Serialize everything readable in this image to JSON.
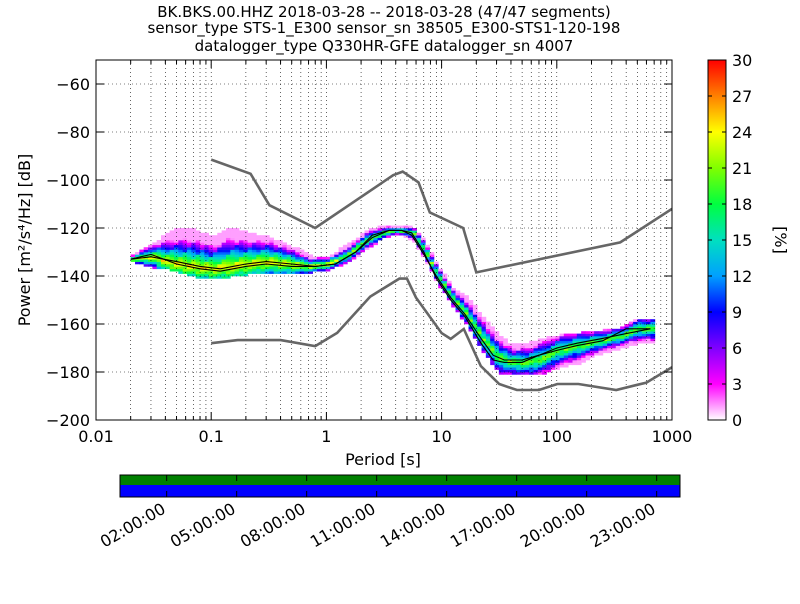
{
  "titles": {
    "line1": "BK.BKS.00.HHZ   2018-03-28 -- 2018-03-28  (47/47 segments)",
    "line2": "sensor_type STS-1_E300 sensor_sn 38505_E300-STS1-120-198",
    "line3": "datalogger_type Q330HR-GFE datalogger_sn 4007"
  },
  "chart_data": {
    "type": "heatmap",
    "xlabel": "Period [s]",
    "ylabel_text": "Power",
    "ylabel_units": "[m²/s⁴/Hz] [dB]",
    "x_scale": "log",
    "xlim": [
      0.01,
      1000
    ],
    "ylim": [
      -200,
      -50
    ],
    "x_ticks": [
      0.01,
      0.1,
      1,
      10,
      100,
      1000
    ],
    "x_tick_labels": [
      "0.01",
      "0.1",
      "1",
      "10",
      "100",
      "1000"
    ],
    "y_ticks": [
      -60,
      -80,
      -100,
      -120,
      -140,
      -160,
      -180,
      -200
    ],
    "y_tick_labels": [
      "−60",
      "−80",
      "−100",
      "−120",
      "−140",
      "−160",
      "−180",
      "−200"
    ],
    "grid": "dotted",
    "colorbar": {
      "label": "[%]",
      "range": [
        0,
        30
      ],
      "ticks": [
        0,
        3,
        6,
        9,
        12,
        15,
        18,
        21,
        24,
        27,
        30
      ],
      "colormap": [
        "#ffffff",
        "#ff00ff",
        "#8000ff",
        "#0000ff",
        "#00a0ff",
        "#00e0c0",
        "#00ff40",
        "#80ff00",
        "#ffff00",
        "#ff8000",
        "#ff0000"
      ]
    },
    "series": [
      {
        "name": "",
        "role": "NHNM",
        "color": "#666666",
        "x": [
          0.1,
          0.22,
          0.32,
          0.8,
          3.8,
          4.6,
          6.3,
          7.9,
          15.4,
          20,
          354.8,
          1000
        ],
        "y": [
          -91.5,
          -97.4,
          -110.5,
          -120,
          -98,
          -96.5,
          -101,
          -113.5,
          -120,
          -138.5,
          -126,
          -112
        ]
      },
      {
        "name": "",
        "role": "NLNM",
        "color": "#666666",
        "x": [
          0.1,
          0.17,
          0.4,
          0.8,
          1.24,
          2.4,
          4.3,
          5,
          6,
          10,
          12,
          15.6,
          21.9,
          31.6,
          45,
          70,
          101,
          154,
          328,
          600,
          1000
        ],
        "y": [
          -168,
          -166.7,
          -166.7,
          -169.2,
          -163.7,
          -148.6,
          -141.1,
          -141.1,
          -149,
          -163.8,
          -166.2,
          -162.1,
          -177.5,
          -185,
          -187.5,
          -187.5,
          -185,
          -185,
          -187.5,
          -184.4,
          -178
        ]
      },
      {
        "name": "",
        "role": "mean",
        "color": "#000000",
        "x": [
          0.02,
          0.03,
          0.05,
          0.08,
          0.12,
          0.2,
          0.3,
          0.5,
          0.8,
          1.2,
          1.8,
          2.5,
          3.5,
          4.5,
          5.5,
          7,
          9,
          12,
          16,
          22,
          28,
          35,
          50,
          70,
          100,
          150,
          250,
          400,
          650
        ],
        "y": [
          -133,
          -132,
          -134,
          -136,
          -137,
          -135,
          -134,
          -135,
          -136,
          -135,
          -130,
          -124,
          -121,
          -121,
          -123,
          -131,
          -140,
          -149,
          -156,
          -166,
          -173,
          -175,
          -175,
          -173,
          -170,
          -168,
          -166,
          -164,
          -162
        ]
      },
      {
        "name": "",
        "role": "mode",
        "color": "#000000",
        "x": [
          0.02,
          0.03,
          0.05,
          0.08,
          0.12,
          0.2,
          0.3,
          0.5,
          0.8,
          1.2,
          1.8,
          2.5,
          3.5,
          4.5,
          5.5,
          7,
          9,
          12,
          16,
          22,
          28,
          35,
          50,
          70,
          100,
          150,
          250,
          400,
          650
        ],
        "y": [
          -133,
          -131,
          -135,
          -137,
          -138,
          -136,
          -135,
          -136,
          -136,
          -135,
          -130,
          -123,
          -121,
          -121,
          -122,
          -130,
          -141,
          -150,
          -157,
          -168,
          -175,
          -176,
          -176,
          -173,
          -171,
          -169,
          -167,
          -162,
          -162
        ]
      }
    ],
    "heat_columns": [
      {
        "x": 0.02,
        "lo": -134,
        "hi": -131,
        "peak": -133
      },
      {
        "x": 0.03,
        "lo": -136,
        "hi": -127,
        "peak": -132
      },
      {
        "x": 0.04,
        "lo": -137,
        "hi": -122,
        "peak": -134
      },
      {
        "x": 0.05,
        "lo": -138,
        "hi": -120,
        "peak": -135
      },
      {
        "x": 0.07,
        "lo": -140,
        "hi": -121,
        "peak": -136
      },
      {
        "x": 0.1,
        "lo": -141,
        "hi": -124,
        "peak": -137
      },
      {
        "x": 0.14,
        "lo": -140,
        "hi": -120,
        "peak": -136
      },
      {
        "x": 0.2,
        "lo": -139,
        "hi": -122,
        "peak": -135
      },
      {
        "x": 0.3,
        "lo": -139,
        "hi": -124,
        "peak": -134
      },
      {
        "x": 0.45,
        "lo": -139,
        "hi": -127,
        "peak": -135
      },
      {
        "x": 0.7,
        "lo": -138,
        "hi": -132,
        "peak": -136
      },
      {
        "x": 1.0,
        "lo": -137,
        "hi": -132,
        "peak": -135
      },
      {
        "x": 1.5,
        "lo": -134,
        "hi": -127,
        "peak": -131
      },
      {
        "x": 2.2,
        "lo": -128,
        "hi": -121,
        "peak": -125
      },
      {
        "x": 3.0,
        "lo": -124,
        "hi": -119,
        "peak": -122
      },
      {
        "x": 4.0,
        "lo": -122,
        "hi": -119,
        "peak": -121
      },
      {
        "x": 5.5,
        "lo": -125,
        "hi": -120,
        "peak": -122
      },
      {
        "x": 7.0,
        "lo": -133,
        "hi": -126,
        "peak": -130
      },
      {
        "x": 9.0,
        "lo": -143,
        "hi": -136,
        "peak": -140
      },
      {
        "x": 12,
        "lo": -152,
        "hi": -145,
        "peak": -149
      },
      {
        "x": 16,
        "lo": -160,
        "hi": -149,
        "peak": -156
      },
      {
        "x": 22,
        "lo": -171,
        "hi": -157,
        "peak": -166
      },
      {
        "x": 30,
        "lo": -180,
        "hi": -165,
        "peak": -174
      },
      {
        "x": 40,
        "lo": -181,
        "hi": -169,
        "peak": -176
      },
      {
        "x": 55,
        "lo": -181,
        "hi": -168,
        "peak": -176
      },
      {
        "x": 75,
        "lo": -180,
        "hi": -166,
        "peak": -174
      },
      {
        "x": 100,
        "lo": -178,
        "hi": -165,
        "peak": -171
      },
      {
        "x": 150,
        "lo": -176,
        "hi": -164,
        "peak": -169
      },
      {
        "x": 230,
        "lo": -172,
        "hi": -163,
        "peak": -167
      },
      {
        "x": 350,
        "lo": -170,
        "hi": -162,
        "peak": -165
      },
      {
        "x": 500,
        "lo": -168,
        "hi": -158,
        "peak": -162
      },
      {
        "x": 650,
        "lo": -168,
        "hi": -158,
        "peak": -162
      }
    ]
  },
  "time_coverage": {
    "tick_labels": [
      "02:00:00",
      "05:00:00",
      "08:00:00",
      "11:00:00",
      "14:00:00",
      "17:00:00",
      "20:00:00",
      "23:00:00"
    ],
    "data_color": "#008000",
    "gap_free_color": "#0000ff"
  }
}
